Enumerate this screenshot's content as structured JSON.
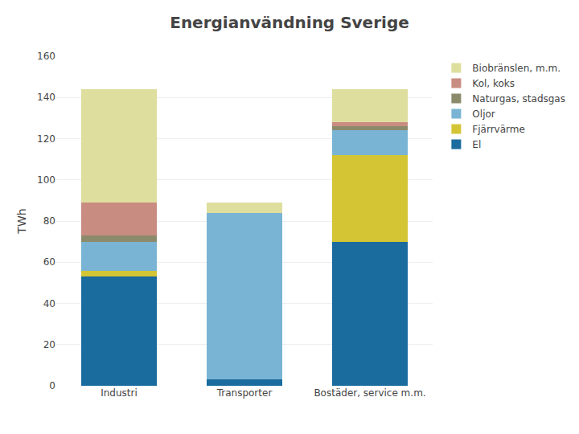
{
  "chart_data": {
    "type": "bar",
    "stacked": true,
    "title": "Energianvändning Sverige",
    "ylabel": "TWh",
    "categories": [
      "Industri",
      "Transporter",
      "Bostäder, service m.m."
    ],
    "series": [
      {
        "name": "El",
        "color": "#1a6b9e",
        "values": [
          53,
          3,
          70
        ]
      },
      {
        "name": "Fjärrvärme",
        "color": "#d4c535",
        "values": [
          3,
          0,
          42
        ]
      },
      {
        "name": "Oljor",
        "color": "#7ab4d4",
        "values": [
          14,
          81,
          12
        ]
      },
      {
        "name": "Naturgas, stadsgas",
        "color": "#8b8b6b",
        "values": [
          3,
          0,
          2
        ]
      },
      {
        "name": "Kol, koks",
        "color": "#c98c80",
        "values": [
          16,
          0,
          2
        ]
      },
      {
        "name": "Biobränslen, m.m.",
        "color": "#dede9e",
        "values": [
          55,
          5,
          16
        ]
      }
    ],
    "ylim": [
      0,
      160
    ],
    "yticks": [
      0,
      20,
      40,
      60,
      80,
      100,
      120,
      140,
      160
    ],
    "grid": true,
    "legend": "right"
  }
}
